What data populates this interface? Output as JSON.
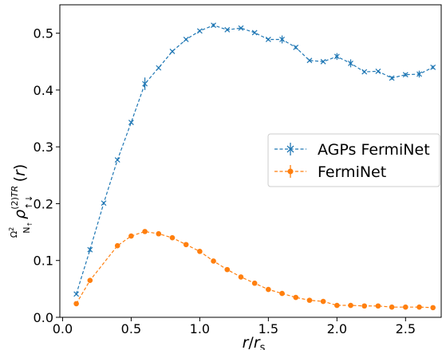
{
  "chart_data": {
    "type": "line",
    "xlabel": "r/r_s",
    "ylabel": "Ω²/N↑ ρ↑↓(2)TR(r)",
    "xlim": [
      -0.02,
      2.76
    ],
    "ylim": [
      0.0,
      0.55
    ],
    "x_ticks": [
      0.0,
      0.5,
      1.0,
      1.5,
      2.0,
      2.5
    ],
    "x_tick_labels": [
      "0.0",
      "0.5",
      "1.0",
      "1.5",
      "2.0",
      "2.5"
    ],
    "y_ticks": [
      0.0,
      0.1,
      0.2,
      0.3,
      0.4,
      0.5
    ],
    "y_tick_labels": [
      "0.0",
      "0.1",
      "0.2",
      "0.3",
      "0.4",
      "0.5"
    ],
    "grid": false,
    "legend_position": "center-right",
    "series": [
      {
        "name": "AGPs FermiNet",
        "color": "#1f77b4",
        "marker": "x",
        "linestyle": "dashed",
        "x": [
          0.1,
          0.2,
          0.3,
          0.4,
          0.5,
          0.6,
          0.7,
          0.8,
          0.9,
          1.0,
          1.1,
          1.2,
          1.3,
          1.4,
          1.5,
          1.6,
          1.7,
          1.8,
          1.9,
          2.0,
          2.1,
          2.2,
          2.3,
          2.4,
          2.5,
          2.6,
          2.7
        ],
        "y": [
          0.041,
          0.119,
          0.201,
          0.277,
          0.343,
          0.411,
          0.439,
          0.468,
          0.489,
          0.504,
          0.514,
          0.506,
          0.509,
          0.501,
          0.489,
          0.489,
          0.475,
          0.452,
          0.45,
          0.459,
          0.447,
          0.432,
          0.433,
          0.421,
          0.427,
          0.428,
          0.44
        ],
        "err": [
          0.002,
          0.004,
          0.002,
          0.002,
          0.002,
          0.011,
          0.002,
          0.002,
          0.002,
          0.002,
          0.003,
          0.002,
          0.002,
          0.002,
          0.002,
          0.007,
          0.003,
          0.002,
          0.002,
          0.006,
          0.007,
          0.002,
          0.002,
          0.003,
          0.003,
          0.006,
          0.003
        ]
      },
      {
        "name": "FermiNet",
        "color": "#ff7f0e",
        "marker": "o",
        "linestyle": "dashed",
        "x": [
          0.1,
          0.2,
          0.4,
          0.5,
          0.6,
          0.7,
          0.8,
          0.9,
          1.0,
          1.1,
          1.2,
          1.3,
          1.4,
          1.5,
          1.6,
          1.7,
          1.8,
          1.9,
          2.0,
          2.1,
          2.2,
          2.3,
          2.4,
          2.5,
          2.6,
          2.7
        ],
        "y": [
          0.024,
          0.065,
          0.126,
          0.143,
          0.151,
          0.147,
          0.14,
          0.128,
          0.116,
          0.099,
          0.084,
          0.071,
          0.06,
          0.049,
          0.042,
          0.035,
          0.03,
          0.028,
          0.021,
          0.021,
          0.02,
          0.02,
          0.018,
          0.018,
          0.018,
          0.017
        ],
        "err": [
          0,
          0,
          0,
          0,
          0,
          0,
          0,
          0,
          0,
          0,
          0,
          0,
          0,
          0,
          0,
          0,
          0,
          0,
          0,
          0,
          0,
          0,
          0,
          0,
          0,
          0
        ]
      }
    ]
  }
}
